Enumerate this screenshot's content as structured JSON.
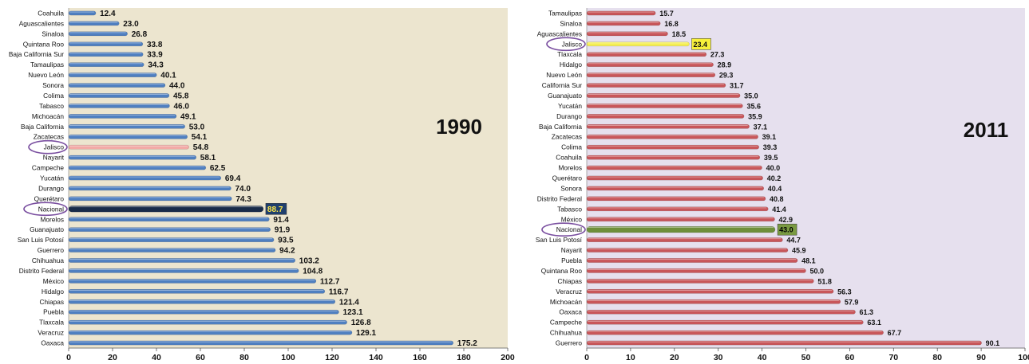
{
  "chart_data": [
    {
      "type": "bar",
      "orientation": "horizontal",
      "title": "1990",
      "xlim": [
        0,
        200
      ],
      "x_ticks": [
        "0",
        "20",
        "40",
        "60",
        "80",
        "100",
        "120",
        "140",
        "160",
        "180",
        "200"
      ],
      "grid": false,
      "colors": {
        "plot_bg": "#ece5cf",
        "bar": "#4f7fc0",
        "highlight_bar": "#f2aaa6",
        "national_bar": "#182b49",
        "national_label_bg": "#1f3f6e",
        "national_label_fg": "#ffe94a",
        "circle": "#7a4fa0"
      },
      "highlighted_category": "Jalisco",
      "national_category": "Nacional",
      "categories": [
        "Coahuila",
        "Aguascalientes",
        "Sinaloa",
        "Quintana Roo",
        "Baja California Sur",
        "Tamaulipas",
        "Nuevo León",
        "Sonora",
        "Colima",
        "Tabasco",
        "Michoacán",
        "Baja California",
        "Zacatecas",
        "Jalisco",
        "Nayarit",
        "Campeche",
        "Yucatán",
        "Durango",
        "Querétaro",
        "Nacional",
        "Morelos",
        "Guanajuato",
        "San Luis Potosí",
        "Guerrero",
        "Chihuahua",
        "Distrito Federal",
        "México",
        "Hidalgo",
        "Chiapas",
        "Puebla",
        "Tlaxcala",
        "Veracruz",
        "Oaxaca"
      ],
      "values": [
        12.4,
        23.0,
        26.8,
        33.8,
        33.9,
        34.3,
        40.1,
        44.0,
        45.8,
        46.0,
        49.1,
        53.0,
        54.1,
        54.8,
        58.1,
        62.5,
        69.4,
        74.0,
        74.3,
        88.7,
        91.4,
        91.9,
        93.5,
        94.2,
        103.2,
        104.8,
        112.7,
        116.7,
        121.4,
        123.1,
        126.8,
        129.1,
        175.2
      ],
      "value_labels": [
        "12.4",
        "23.0",
        "26.8",
        "33.8",
        "33.9",
        "34.3",
        "40.1",
        "44.0",
        "45.8",
        "46.0",
        "49.1",
        "53.0",
        "54.1",
        "54.8",
        "58.1",
        "62.5",
        "69.4",
        "74.0",
        "74.3",
        "88.7",
        "91.4",
        "91.9",
        "93.5",
        "94.2",
        "103.2",
        "104.8",
        "112.7",
        "116.7",
        "121.4",
        "123.1",
        "126.8",
        "129.1",
        "175.2"
      ]
    },
    {
      "type": "bar",
      "orientation": "horizontal",
      "title": "2011",
      "xlim": [
        0,
        100
      ],
      "x_ticks": [
        "0",
        "10",
        "20",
        "30",
        "40",
        "50",
        "60",
        "70",
        "80",
        "90",
        "100"
      ],
      "grid": false,
      "colors": {
        "plot_bg": "#e6e0ee",
        "bar": "#c8565a",
        "highlight_bar": "#f5ee52",
        "highlight_label_bg": "#f7f03a",
        "national_bar": "#6f8f3a",
        "national_label_bg": "#7a9a42",
        "national_label_fg": "#000000",
        "circle": "#7a4fa0"
      },
      "highlighted_category": "Jalisco",
      "national_category": "Nacional",
      "categories": [
        "Tamaulipas",
        "Sinaloa",
        "Aguascalientes",
        "Jalisco",
        "Tlaxcala",
        "Hidalgo",
        "Nuevo León",
        "California Sur",
        "Guanajuato",
        "Yucatán",
        "Durango",
        "Baja California",
        "Zacatecas",
        "Colima",
        "Coahuila",
        "Morelos",
        "Querétaro",
        "Sonora",
        "Distrito Federal",
        "Tabasco",
        "México",
        "Nacional",
        "San Luis Potosí",
        "Nayarit",
        "Puebla",
        "Quintana Roo",
        "Chiapas",
        "Veracruz",
        "Michoacán",
        "Oaxaca",
        "Campeche",
        "Chihuahua",
        "Guerrero"
      ],
      "values": [
        15.7,
        16.8,
        18.5,
        23.4,
        27.3,
        28.9,
        29.3,
        31.7,
        35.0,
        35.6,
        35.9,
        37.1,
        39.1,
        39.3,
        39.5,
        40.0,
        40.2,
        40.4,
        40.8,
        41.4,
        42.9,
        43.0,
        44.7,
        45.9,
        48.1,
        50.0,
        51.8,
        56.3,
        57.9,
        61.3,
        63.1,
        67.7,
        90.1
      ],
      "value_labels": [
        "15.7",
        "16.8",
        "18.5",
        "23.4",
        "27.3",
        "28.9",
        "29.3",
        "31.7",
        "35.0",
        "35.6",
        "35.9",
        "37.1",
        "39.1",
        "39.3",
        "39.5",
        "40.0",
        "40.2",
        "40.4",
        "40.8",
        "41.4",
        "42.9",
        "43.0",
        "44.7",
        "45.9",
        "48.1",
        "50.0",
        "51.8",
        "56.3",
        "57.9",
        "61.3",
        "63.1",
        "67.7",
        "90.1"
      ]
    }
  ]
}
